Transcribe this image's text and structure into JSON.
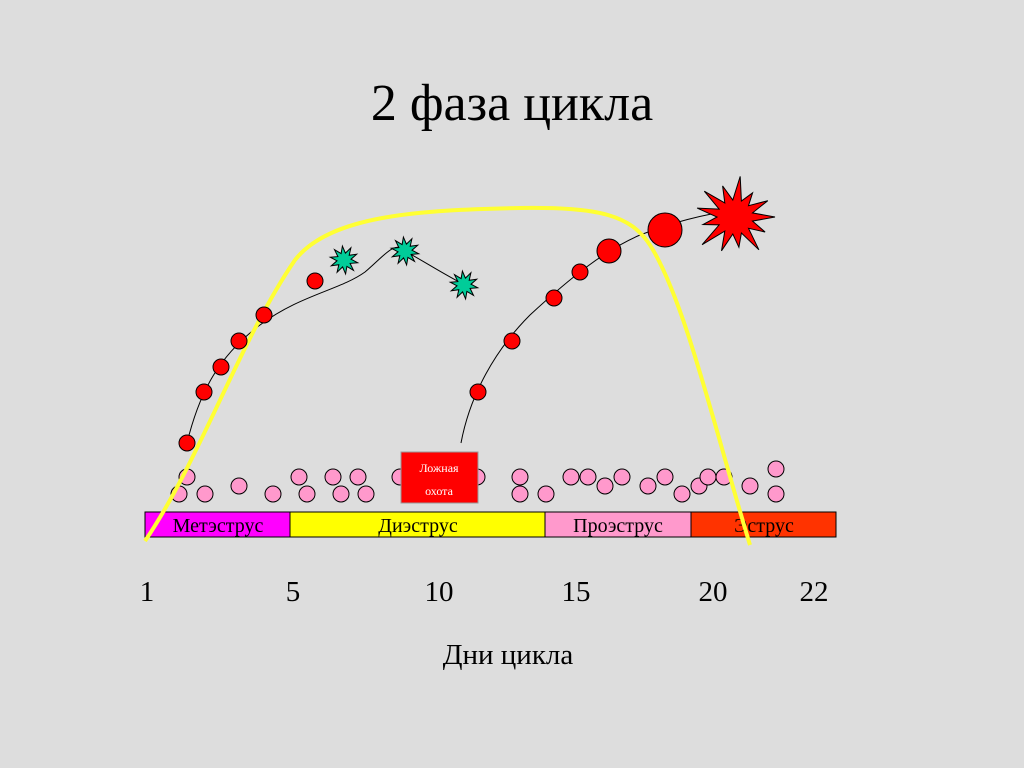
{
  "slide": {
    "title": "2 фаза цикла"
  },
  "phases": [
    {
      "label": "Метэструс",
      "color": "#ff00ff"
    },
    {
      "label": "Диэструс",
      "color": "#ffff00"
    },
    {
      "label": "Проэструс",
      "color": "#ff99cc"
    },
    {
      "label": "Эструс",
      "color": "#ff3300"
    }
  ],
  "axis": {
    "ticks": [
      "1",
      "5",
      "10",
      "15",
      "20",
      "22"
    ],
    "label": "Дни цикла"
  },
  "callout": {
    "line1": "Ложная",
    "line2": "охота",
    "color": "#ff0000"
  },
  "colors": {
    "hormone_curve": "#ffff33",
    "follicle": "#ff0000",
    "small_follicle": "#ff99cc",
    "atretic_star": "#00cc99",
    "ovulation_burst": "#ff0000"
  }
}
